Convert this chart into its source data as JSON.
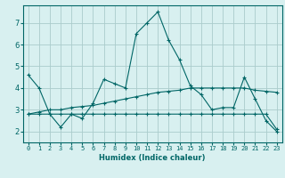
{
  "xlabel": "Humidex (Indice chaleur)",
  "bg_color": "#d8f0f0",
  "grid_color": "#aacccc",
  "line_color": "#006666",
  "x_ticks": [
    0,
    1,
    2,
    3,
    4,
    5,
    6,
    7,
    8,
    9,
    10,
    11,
    12,
    13,
    14,
    15,
    16,
    17,
    18,
    19,
    20,
    21,
    22,
    23
  ],
  "ylim": [
    1.5,
    7.8
  ],
  "xlim": [
    -0.5,
    23.5
  ],
  "line1_y": [
    4.6,
    4.0,
    2.8,
    2.2,
    2.8,
    2.6,
    3.3,
    4.4,
    4.2,
    4.0,
    6.5,
    7.0,
    7.5,
    6.2,
    5.3,
    4.1,
    3.7,
    3.0,
    3.1,
    3.1,
    4.5,
    3.5,
    2.5,
    2.0
  ],
  "line2_y": [
    2.8,
    2.8,
    2.8,
    2.8,
    2.8,
    2.8,
    2.8,
    2.8,
    2.8,
    2.8,
    2.8,
    2.8,
    2.8,
    2.8,
    2.8,
    2.8,
    2.8,
    2.8,
    2.8,
    2.8,
    2.8,
    2.8,
    2.8,
    2.1
  ],
  "line3_y": [
    2.8,
    2.9,
    3.0,
    3.0,
    3.1,
    3.15,
    3.2,
    3.3,
    3.4,
    3.5,
    3.6,
    3.7,
    3.8,
    3.85,
    3.9,
    4.0,
    4.0,
    4.0,
    4.0,
    4.0,
    4.0,
    3.9,
    3.85,
    3.8
  ],
  "yticks": [
    2,
    3,
    4,
    5,
    6,
    7
  ],
  "xlabel_fontsize": 6,
  "tick_fontsize": 5,
  "marker_size": 3
}
